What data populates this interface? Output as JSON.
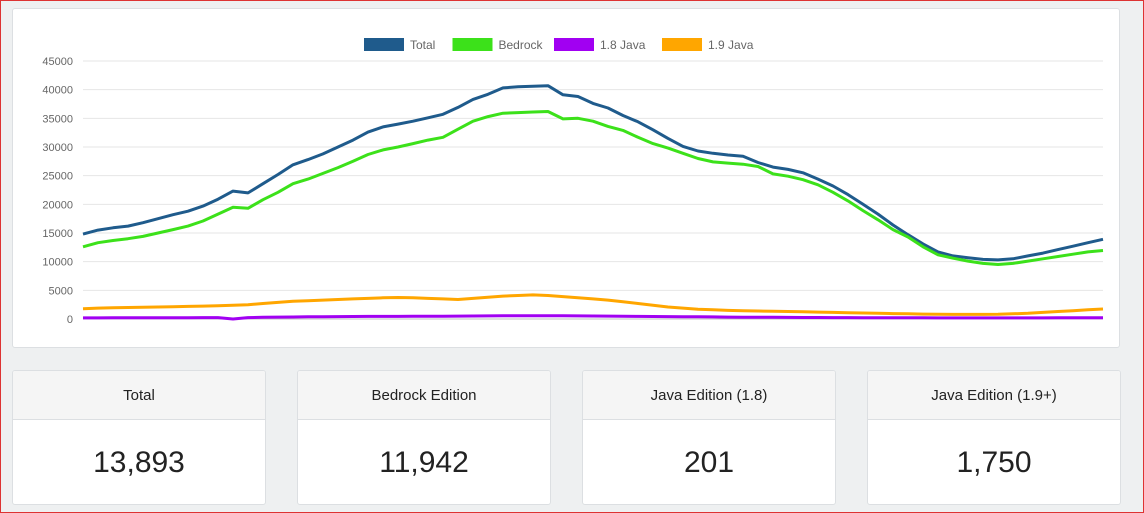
{
  "chart_data": {
    "type": "line",
    "title": "",
    "xlabel": "",
    "ylabel": "",
    "ylim": [
      0,
      45000
    ],
    "yticks": [
      0,
      5000,
      10000,
      15000,
      20000,
      25000,
      30000,
      35000,
      40000,
      45000
    ],
    "grid": true,
    "legend_placement": "top-center",
    "x": [
      0,
      1,
      2,
      3,
      4,
      5,
      6,
      7,
      8,
      9,
      10,
      11,
      12,
      13,
      14,
      15,
      16,
      17,
      18,
      19,
      20,
      21,
      22,
      23,
      24,
      25,
      26,
      27,
      28,
      29,
      30,
      31,
      32,
      33,
      34,
      35,
      36,
      37,
      38,
      39,
      40,
      41,
      42,
      43,
      44,
      45,
      46,
      47,
      48,
      49,
      50
    ],
    "series": [
      {
        "name": "Total",
        "color": "#1f5b8c",
        "values": [
          14800,
          15500,
          15900,
          16200,
          16800,
          17500,
          18200,
          18800,
          19700,
          20900,
          22300,
          22000,
          23600,
          25200,
          26900,
          27800,
          28800,
          30000,
          31200,
          32600,
          33500,
          34000,
          34500,
          35100,
          35700,
          36900,
          38300,
          39200,
          40300,
          40500,
          40600,
          40700,
          39100,
          38800,
          37600,
          36800,
          35500,
          34400,
          33000,
          31500,
          30100,
          29300,
          28900,
          28600,
          28400,
          27300,
          26500,
          26100,
          25500,
          24400,
          23200
        ],
        "values_tail": [
          21700,
          20000,
          18300,
          16400,
          14700,
          13100,
          11700,
          11000,
          10700,
          10400,
          10300,
          10500,
          11000,
          11500,
          12100,
          12700,
          13300,
          13900
        ]
      },
      {
        "name": "Bedrock",
        "color": "#3ce11a",
        "values": [
          12600,
          13300,
          13700,
          14000,
          14400,
          15000,
          15600,
          16200,
          17100,
          18300,
          19500,
          19300,
          20800,
          22100,
          23600,
          24400,
          25400,
          26400,
          27500,
          28700,
          29500,
          30000,
          30600,
          31200,
          31700,
          33100,
          34500,
          35300,
          35900,
          36000,
          36100,
          36200,
          34900,
          35000,
          34500,
          33600,
          32900,
          31700,
          30600,
          29800,
          28900,
          28000,
          27400,
          27200,
          27000,
          26600,
          25300,
          24900,
          24300,
          23400,
          22100
        ],
        "values_tail": [
          20600,
          18900,
          17300,
          15600,
          14300,
          12600,
          11200,
          10600,
          10100,
          9700,
          9500,
          9700,
          10100,
          10500,
          10900,
          11300,
          11700,
          11942
        ]
      },
      {
        "name": "1.8 Java",
        "color": "#a100f2",
        "values": [
          200,
          200,
          210,
          210,
          220,
          220,
          230,
          230,
          240,
          250,
          0,
          250,
          300,
          330,
          350,
          380,
          400,
          420,
          430,
          450,
          460,
          460,
          470,
          480,
          490,
          500,
          520,
          540,
          560,
          570,
          580,
          570,
          560,
          540,
          520,
          500,
          480,
          460,
          440,
          420,
          400,
          380,
          360,
          340,
          320,
          300,
          290,
          280,
          270,
          260,
          250
        ],
        "values_tail": [
          240,
          230,
          220,
          215,
          210,
          205,
          200,
          200,
          200,
          200,
          200,
          200,
          200,
          200,
          201,
          201,
          201,
          201
        ]
      },
      {
        "name": "1.9 Java",
        "color": "#ffa600",
        "values": [
          1800,
          1900,
          1950,
          2000,
          2050,
          2100,
          2150,
          2200,
          2250,
          2300,
          2400,
          2500,
          2700,
          2900,
          3100,
          3200,
          3300,
          3400,
          3500,
          3600,
          3700,
          3750,
          3700,
          3600,
          3500,
          3400,
          3600,
          3800,
          4000,
          4100,
          4200,
          4100,
          3900,
          3700,
          3500,
          3300,
          3000,
          2700,
          2400,
          2100,
          1900,
          1700,
          1600,
          1500,
          1450,
          1400,
          1350,
          1300,
          1250,
          1200,
          1150
        ],
        "values_tail": [
          1100,
          1050,
          1000,
          950,
          900,
          850,
          820,
          800,
          800,
          800,
          820,
          900,
          1000,
          1150,
          1300,
          1450,
          1600,
          1750
        ]
      }
    ]
  },
  "stats": [
    {
      "label": "Total",
      "value": "13,893"
    },
    {
      "label": "Bedrock Edition",
      "value": "11,942"
    },
    {
      "label": "Java Edition (1.8)",
      "value": "201"
    },
    {
      "label": "Java Edition (1.9+)",
      "value": "1,750"
    }
  ]
}
